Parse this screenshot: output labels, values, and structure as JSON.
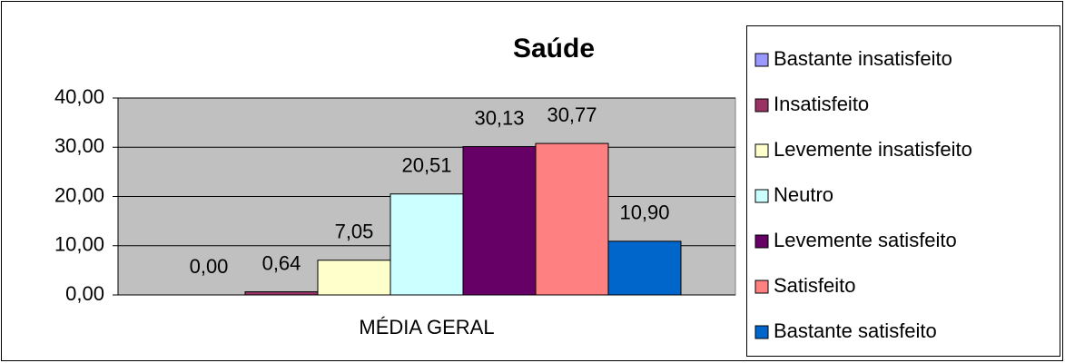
{
  "chart_data": {
    "type": "bar",
    "title": "Saúde",
    "categories": [
      "MÉDIA GERAL"
    ],
    "series": [
      {
        "name": "Bastante insatisfeito",
        "color": "#9999ff",
        "values": [
          0
        ],
        "value_labels": [
          "0,00"
        ]
      },
      {
        "name": "Insatisfeito",
        "color": "#993366",
        "values": [
          0.64
        ],
        "value_labels": [
          "0,64"
        ]
      },
      {
        "name": "Levemente insatisfeito",
        "color": "#ffffcc",
        "values": [
          7.05
        ],
        "value_labels": [
          "7,05"
        ]
      },
      {
        "name": "Neutro",
        "color": "#ccffff",
        "values": [
          20.51
        ],
        "value_labels": [
          "20,51"
        ]
      },
      {
        "name": "Levemente satisfeito",
        "color": "#660066",
        "values": [
          30.13
        ],
        "value_labels": [
          "30,13"
        ]
      },
      {
        "name": "Satisfeito",
        "color": "#ff8080",
        "values": [
          30.77
        ],
        "value_labels": [
          "30,77"
        ]
      },
      {
        "name": "Bastante satisfeito",
        "color": "#0066cc",
        "values": [
          10.9
        ],
        "value_labels": [
          "10,90"
        ]
      }
    ],
    "ylim": [
      0,
      40
    ],
    "yticks": [
      {
        "value": 0,
        "label": "0,00"
      },
      {
        "value": 10,
        "label": "10,00"
      },
      {
        "value": 20,
        "label": "20,00"
      },
      {
        "value": 30,
        "label": "30,00"
      },
      {
        "value": 40,
        "label": "40,00"
      }
    ],
    "grid": true,
    "legend": "right"
  }
}
